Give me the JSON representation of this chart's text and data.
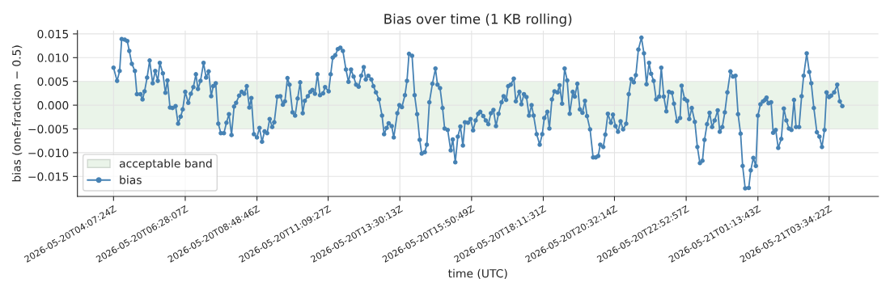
{
  "chart_data": {
    "type": "line",
    "title": "Bias over time (1 KB rolling)",
    "xlabel": "time (UTC)",
    "ylabel": "bias (one-fraction − 0.5)",
    "xlim": [
      "2026-05-20T02:56",
      "2026-05-21T05:11"
    ],
    "ylim": [
      -0.0192,
      0.0157
    ],
    "xticks": [
      {
        "value": "2026-05-20T04:07",
        "label": "2026-05-20T04:07:24Z"
      },
      {
        "value": "2026-05-20T06:28",
        "label": "2026-05-20T06:28:07Z"
      },
      {
        "value": "2026-05-20T08:49",
        "label": "2026-05-20T08:48:46Z"
      },
      {
        "value": "2026-05-20T11:09",
        "label": "2026-05-20T11:09:27Z"
      },
      {
        "value": "2026-05-20T13:30",
        "label": "2026-05-20T13:30:13Z"
      },
      {
        "value": "2026-05-20T15:51",
        "label": "2026-05-20T15:50:49Z"
      },
      {
        "value": "2026-05-20T18:12",
        "label": "2026-05-20T18:11:31Z"
      },
      {
        "value": "2026-05-20T20:32",
        "label": "2026-05-20T20:32:14Z"
      },
      {
        "value": "2026-05-20T22:53",
        "label": "2026-05-20T22:52:57Z"
      },
      {
        "value": "2026-05-21T01:14",
        "label": "2026-05-21T01:13:43Z"
      },
      {
        "value": "2026-05-21T03:34",
        "label": "2026-05-21T03:34:22Z"
      }
    ],
    "yticks": [
      {
        "value": -0.015,
        "label": "−0.015"
      },
      {
        "value": -0.01,
        "label": "−0.010"
      },
      {
        "value": -0.005,
        "label": "−0.005"
      },
      {
        "value": 0,
        "label": "0.000"
      },
      {
        "value": 0.005,
        "label": "0.005"
      },
      {
        "value": 0.01,
        "label": "0.010"
      },
      {
        "value": 0.015,
        "label": "0.015"
      }
    ],
    "grid": true,
    "legend": "bottom left",
    "marker": "circle",
    "line_style": "solid",
    "bands": [
      {
        "axis": "y",
        "from": -0.005,
        "to": 0.005,
        "label": "acceptable band",
        "color": "#eaf4e9"
      }
    ],
    "series": [
      {
        "name": "bias",
        "color": "#4682b4",
        "x": [
          "2026-05-20T04:07",
          "2026-05-20T04:14",
          "2026-05-20T04:19",
          "2026-05-20T04:23",
          "2026-05-20T04:29",
          "2026-05-20T04:34",
          "2026-05-20T04:38",
          "2026-05-20T04:43",
          "2026-05-20T04:49",
          "2026-05-20T04:53",
          "2026-05-20T05:00",
          "2026-05-20T05:04",
          "2026-05-20T05:08",
          "2026-05-20T05:13",
          "2026-05-20T05:18",
          "2026-05-20T05:24",
          "2026-05-20T05:29",
          "2026-05-20T05:34",
          "2026-05-20T05:38",
          "2026-05-20T05:44",
          "2026-05-20T05:49",
          "2026-05-20T05:53",
          "2026-05-20T05:58",
          "2026-05-20T06:03",
          "2026-05-20T06:09",
          "2026-05-20T06:14",
          "2026-05-20T06:19",
          "2026-05-20T06:23",
          "2026-05-20T06:28",
          "2026-05-20T06:34",
          "2026-05-20T06:39",
          "2026-05-20T06:44",
          "2026-05-20T06:49",
          "2026-05-20T06:53",
          "2026-05-20T06:58",
          "2026-05-20T07:04",
          "2026-05-20T07:09",
          "2026-05-20T07:14",
          "2026-05-20T07:19",
          "2026-05-20T07:23",
          "2026-05-20T07:28",
          "2026-05-20T07:33",
          "2026-05-20T07:38",
          "2026-05-20T07:44",
          "2026-05-20T07:49",
          "2026-05-20T07:54",
          "2026-05-20T07:59",
          "2026-05-20T08:04",
          "2026-05-20T08:08",
          "2026-05-20T08:14",
          "2026-05-20T08:19",
          "2026-05-20T08:24",
          "2026-05-20T08:29",
          "2026-05-20T08:34",
          "2026-05-20T08:38",
          "2026-05-20T08:43",
          "2026-05-20T08:49",
          "2026-05-20T08:54",
          "2026-05-20T08:59",
          "2026-05-20T09:04",
          "2026-05-20T09:09",
          "2026-05-20T09:14",
          "2026-05-20T09:19",
          "2026-05-20T09:23",
          "2026-05-20T09:29",
          "2026-05-20T09:35",
          "2026-05-20T09:40",
          "2026-05-20T09:44",
          "2026-05-20T09:49",
          "2026-05-20T09:53",
          "2026-05-20T09:59",
          "2026-05-20T10:04",
          "2026-05-20T10:09",
          "2026-05-20T10:14",
          "2026-05-20T10:19",
          "2026-05-20T10:23",
          "2026-05-20T10:29",
          "2026-05-20T10:34",
          "2026-05-20T10:38",
          "2026-05-20T10:43",
          "2026-05-20T10:48",
          "2026-05-20T10:53",
          "2026-05-20T10:59",
          "2026-05-20T11:03",
          "2026-05-20T11:10",
          "2026-05-20T11:14",
          "2026-05-20T11:18",
          "2026-05-20T11:23",
          "2026-05-20T11:28",
          "2026-05-20T11:33",
          "2026-05-20T11:38",
          "2026-05-20T11:44",
          "2026-05-20T11:49",
          "2026-05-20T11:54",
          "2026-05-20T11:59",
          "2026-05-20T12:04",
          "2026-05-20T12:09",
          "2026-05-20T12:14",
          "2026-05-20T12:19",
          "2026-05-20T12:23",
          "2026-05-20T12:28",
          "2026-05-20T12:34",
          "2026-05-20T12:38",
          "2026-05-20T12:43",
          "2026-05-20T12:49",
          "2026-05-20T12:55",
          "2026-05-20T12:59",
          "2026-05-20T13:04",
          "2026-05-20T13:08",
          "2026-05-20T13:14",
          "2026-05-20T13:18",
          "2026-05-20T13:25",
          "2026-05-20T13:29",
          "2026-05-20T13:34",
          "2026-05-20T13:40",
          "2026-05-20T13:44",
          "2026-05-20T13:48",
          "2026-05-20T13:54",
          "2026-05-20T13:59",
          "2026-05-20T14:04",
          "2026-05-20T14:09",
          "2026-05-20T14:13",
          "2026-05-20T14:19",
          "2026-05-20T14:23",
          "2026-05-20T14:28",
          "2026-05-20T14:34",
          "2026-05-20T14:40",
          "2026-05-20T14:44",
          "2026-05-20T14:49",
          "2026-05-20T14:54",
          "2026-05-20T14:58",
          "2026-05-20T15:04",
          "2026-05-20T15:10",
          "2026-05-20T15:14",
          "2026-05-20T15:19",
          "2026-05-20T15:24",
          "2026-05-20T15:29",
          "2026-05-20T15:34",
          "2026-05-20T15:38",
          "2026-05-20T15:44",
          "2026-05-20T15:49",
          "2026-05-20T15:54",
          "2026-05-20T15:59",
          "2026-05-20T16:04",
          "2026-05-20T16:08",
          "2026-05-20T16:14",
          "2026-05-20T16:19",
          "2026-05-20T16:24",
          "2026-05-20T16:29",
          "2026-05-20T16:34",
          "2026-05-20T16:39",
          "2026-05-20T16:44",
          "2026-05-20T16:50",
          "2026-05-20T16:54",
          "2026-05-20T16:59",
          "2026-05-20T17:03",
          "2026-05-20T17:08",
          "2026-05-20T17:14",
          "2026-05-20T17:18",
          "2026-05-20T17:25",
          "2026-05-20T17:29",
          "2026-05-20T17:34",
          "2026-05-20T17:39",
          "2026-05-20T17:44",
          "2026-05-20T17:49",
          "2026-05-20T17:53",
          "2026-05-20T17:59",
          "2026-05-20T18:05",
          "2026-05-20T18:10",
          "2026-05-20T18:14",
          "2026-05-20T18:20",
          "2026-05-20T18:24",
          "2026-05-20T18:29",
          "2026-05-20T18:34",
          "2026-05-20T18:40",
          "2026-05-20T18:44",
          "2026-05-20T18:49",
          "2026-05-20T18:54",
          "2026-05-20T18:59",
          "2026-05-20T19:04",
          "2026-05-20T19:10",
          "2026-05-20T19:14",
          "2026-05-20T19:19",
          "2026-05-20T19:24",
          "2026-05-20T19:29",
          "2026-05-20T19:34",
          "2026-05-20T19:38",
          "2026-05-20T19:44",
          "2026-05-20T19:50",
          "2026-05-20T19:55",
          "2026-05-20T20:00",
          "2026-05-20T20:04",
          "2026-05-20T20:10",
          "2026-05-20T20:14",
          "2026-05-20T20:19",
          "2026-05-20T20:25",
          "2026-05-20T20:29",
          "2026-05-20T20:34",
          "2026-05-20T20:39",
          "2026-05-20T20:44",
          "2026-05-20T20:49",
          "2026-05-20T20:55",
          "2026-05-20T21:00",
          "2026-05-20T21:05",
          "2026-05-20T21:10",
          "2026-05-20T21:14",
          "2026-05-20T21:19",
          "2026-05-20T21:25",
          "2026-05-20T21:30",
          "2026-05-20T21:35",
          "2026-05-20T21:40",
          "2026-05-20T21:44",
          "2026-05-20T21:49",
          "2026-05-20T21:54",
          "2026-05-20T22:00",
          "2026-05-20T22:04",
          "2026-05-20T22:09",
          "2026-05-20T22:14",
          "2026-05-20T22:19",
          "2026-05-20T22:25",
          "2026-05-20T22:29",
          "2026-05-20T22:35",
          "2026-05-20T22:41",
          "2026-05-20T22:44",
          "2026-05-20T22:50",
          "2026-05-20T22:55",
          "2026-05-20T22:59",
          "2026-05-20T23:04",
          "2026-05-20T23:10",
          "2026-05-20T23:15",
          "2026-05-20T23:20",
          "2026-05-20T23:25",
          "2026-05-20T23:29",
          "2026-05-20T23:34",
          "2026-05-20T23:39",
          "2026-05-20T23:44",
          "2026-05-20T23:49",
          "2026-05-20T23:55",
          "2026-05-20T23:59",
          "2026-05-21T00:04",
          "2026-05-21T00:09",
          "2026-05-21T00:14",
          "2026-05-21T00:20",
          "2026-05-21T00:25",
          "2026-05-21T00:30",
          "2026-05-21T00:35",
          "2026-05-21T00:40",
          "2026-05-21T00:44",
          "2026-05-21T00:49",
          "2026-05-21T00:56",
          "2026-05-21T01:00",
          "2026-05-21T01:05",
          "2026-05-21T01:10",
          "2026-05-21T01:14",
          "2026-05-21T01:19",
          "2026-05-21T01:24",
          "2026-05-21T01:28",
          "2026-05-21T01:31",
          "2026-05-21T01:35",
          "2026-05-21T01:40",
          "2026-05-21T01:44",
          "2026-05-21T01:49",
          "2026-05-21T01:54",
          "2026-05-21T02:00",
          "2026-05-21T02:05",
          "2026-05-21T02:10",
          "2026-05-21T02:15",
          "2026-05-21T02:20",
          "2026-05-21T02:25",
          "2026-05-21T02:29",
          "2026-05-21T02:35",
          "2026-05-21T02:40",
          "2026-05-21T02:44",
          "2026-05-21T02:50",
          "2026-05-21T02:55",
          "2026-05-21T02:59",
          "2026-05-21T03:04",
          "2026-05-21T03:10",
          "2026-05-21T03:15",
          "2026-05-21T03:20",
          "2026-05-21T03:25",
          "2026-05-21T03:29",
          "2026-05-21T03:34",
          "2026-05-21T03:38",
          "2026-05-21T03:44",
          "2026-05-21T03:50",
          "2026-05-21T03:55",
          "2026-05-21T04:00"
        ],
        "values": [
          0.0079,
          0.0051,
          0.0072,
          0.0139,
          0.0138,
          0.0135,
          0.0114,
          0.0087,
          0.0072,
          0.0023,
          0.0023,
          0.0012,
          0.0029,
          0.0058,
          0.0094,
          0.0046,
          0.0072,
          0.0051,
          0.0089,
          0.0067,
          0.0026,
          0.0052,
          -0.0005,
          -0.0006,
          -0.0002,
          -0.0039,
          -0.0024,
          -0.0009,
          0.0028,
          0.0005,
          0.0024,
          0.0038,
          0.0065,
          0.0034,
          0.0051,
          0.0089,
          0.0058,
          0.0071,
          0.0019,
          0.004,
          0.0046,
          -0.0039,
          -0.0059,
          -0.0059,
          -0.0037,
          -0.0019,
          -0.0063,
          -0.0003,
          0.0005,
          0.002,
          0.0028,
          0.0024,
          0.004,
          -0.0005,
          0.0015,
          -0.0061,
          -0.0068,
          -0.0048,
          -0.0077,
          -0.0055,
          -0.0059,
          -0.0029,
          -0.0046,
          -0.0036,
          0.0018,
          0.0019,
          0.0001,
          0.0008,
          0.0057,
          0.0043,
          -0.0015,
          -0.0022,
          0.0014,
          0.0048,
          -0.0017,
          0.0009,
          0.0019,
          0.0028,
          0.0032,
          0.0024,
          0.0065,
          0.0021,
          0.0025,
          0.0038,
          0.0029,
          0.0065,
          0.01,
          0.0105,
          0.0118,
          0.0121,
          0.0114,
          0.0075,
          0.0049,
          0.0075,
          0.006,
          0.0043,
          0.0039,
          0.0062,
          0.008,
          0.0054,
          0.0062,
          0.0054,
          0.004,
          0.0027,
          0.0012,
          -0.0022,
          -0.0061,
          -0.0048,
          -0.0038,
          -0.0044,
          -0.0068,
          -0.0017,
          0.0,
          -0.0004,
          0.0021,
          0.0051,
          0.0108,
          0.0104,
          0.0021,
          -0.0019,
          -0.0073,
          -0.0102,
          -0.0099,
          -0.0083,
          0.0006,
          0.0045,
          0.0077,
          0.0043,
          0.0036,
          -0.0006,
          -0.0049,
          -0.0052,
          -0.0095,
          -0.0072,
          -0.012,
          -0.0066,
          -0.0045,
          -0.0085,
          -0.0036,
          -0.0037,
          -0.0029,
          -0.0053,
          -0.0032,
          -0.0018,
          -0.0014,
          -0.0023,
          -0.0032,
          -0.004,
          -0.0017,
          -0.001,
          -0.0044,
          -0.0018,
          0.0006,
          0.0019,
          0.0011,
          0.004,
          0.0043,
          0.0056,
          0.0008,
          0.0028,
          0.0002,
          0.0023,
          0.0017,
          -0.0022,
          0.0,
          -0.0022,
          -0.0061,
          -0.0083,
          -0.0061,
          -0.0027,
          -0.0014,
          -0.0049,
          0.0012,
          0.0029,
          0.0027,
          0.0042,
          0.0003,
          0.0077,
          0.0052,
          -0.0018,
          0.0028,
          0.0018,
          0.0045,
          -0.0009,
          -0.0016,
          0.0009,
          -0.0023,
          -0.0051,
          -0.011,
          -0.011,
          -0.0107,
          -0.0083,
          -0.0088,
          -0.0062,
          -0.0018,
          -0.0037,
          -0.002,
          -0.0044,
          -0.0056,
          -0.0034,
          -0.0051,
          -0.0039,
          0.0023,
          0.0055,
          0.0048,
          0.0063,
          0.0117,
          0.0142,
          0.0109,
          0.0044,
          0.0089,
          0.0066,
          0.0051,
          0.0012,
          0.0018,
          0.0079,
          0.0018,
          -0.0013,
          0.0028,
          0.0026,
          0.0003,
          -0.0034,
          -0.0027,
          0.0041,
          0.0013,
          0.0009,
          -0.0029,
          -0.0006,
          -0.0035,
          -0.0088,
          -0.0122,
          -0.0117,
          -0.0073,
          -0.004,
          -0.0016,
          -0.0046,
          -0.0032,
          -0.0011,
          -0.0056,
          -0.0046,
          -0.0015,
          0.0027,
          0.0071,
          0.006,
          0.0062,
          -0.0019,
          -0.006,
          -0.0128,
          -0.0175,
          -0.0174,
          -0.0137,
          -0.0111,
          -0.0128,
          -0.0022,
          0.0002,
          0.0008,
          0.0011,
          0.0016,
          0.0004,
          0.0006,
          -0.0058,
          -0.0052,
          -0.009,
          -0.0071,
          -0.0007,
          -0.0032,
          -0.0049,
          -0.0052,
          0.0011,
          -0.0046,
          -0.0046,
          0.0019,
          0.0062,
          0.0109,
          0.007,
          0.0046,
          -0.0006,
          -0.0057,
          -0.0066,
          -0.0088,
          -0.0052,
          0.0027,
          0.0017,
          0.002,
          0.0027,
          0.0043,
          0.0008,
          -0.0002
        ]
      }
    ]
  }
}
